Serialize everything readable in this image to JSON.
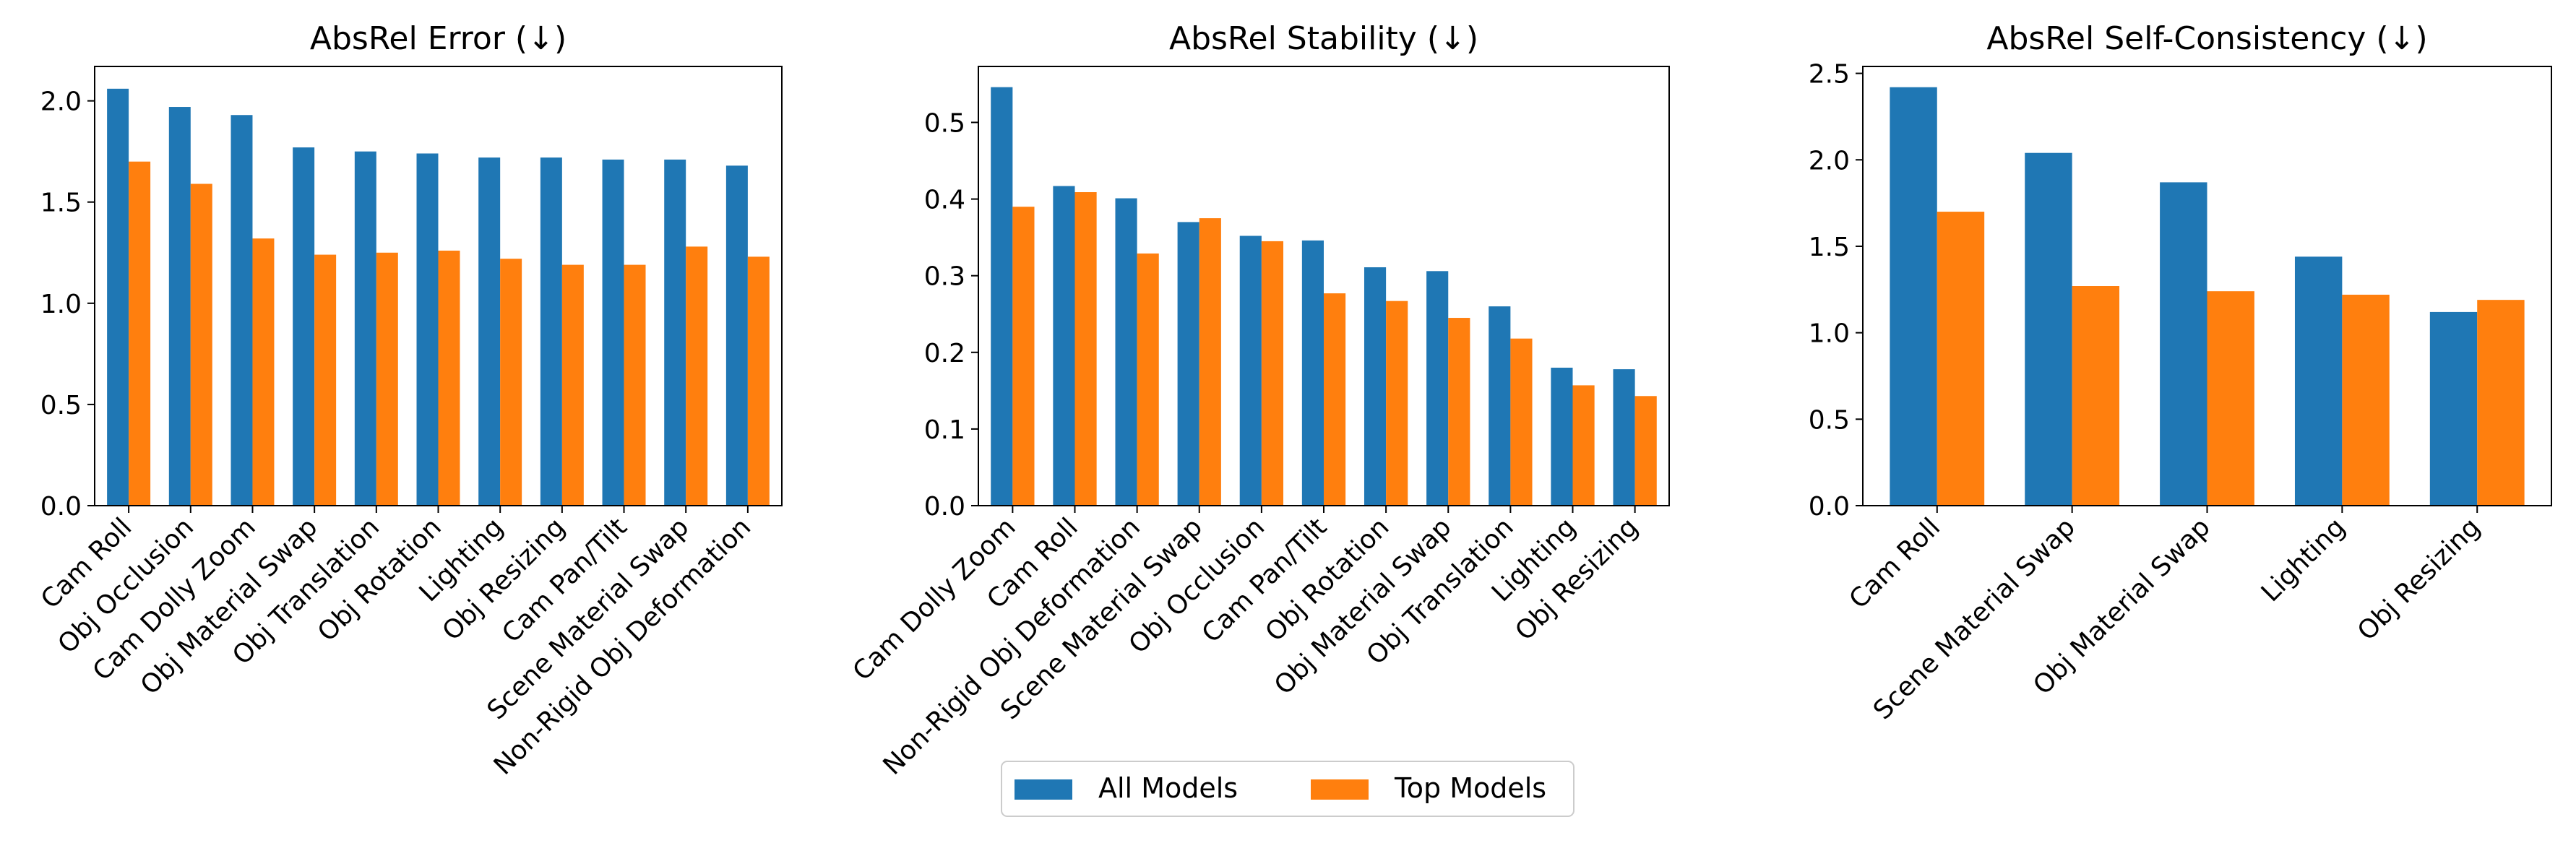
{
  "chart_data": [
    {
      "type": "bar",
      "title": "AbsRel Error (↓)",
      "categories": [
        "Cam Roll",
        "Obj Occlusion",
        "Cam Dolly Zoom",
        "Obj Material Swap",
        "Obj Translation",
        "Obj Rotation",
        "Lighting",
        "Obj Resizing",
        "Cam Pan/Tilt",
        "Scene Material Swap",
        "Non-Rigid Obj Deformation"
      ],
      "series": [
        {
          "name": "All Models",
          "values": [
            2.06,
            1.97,
            1.93,
            1.77,
            1.75,
            1.74,
            1.72,
            1.72,
            1.71,
            1.71,
            1.68
          ]
        },
        {
          "name": "Top Models",
          "values": [
            1.7,
            1.59,
            1.32,
            1.24,
            1.25,
            1.26,
            1.22,
            1.19,
            1.19,
            1.28,
            1.23
          ]
        }
      ],
      "ylim": [
        0,
        2.17
      ],
      "yticks": [
        "0.0",
        "0.5",
        "1.0",
        "1.5",
        "2.0"
      ],
      "xlabel": "",
      "ylabel": ""
    },
    {
      "type": "bar",
      "title": "AbsRel Stability (↓)",
      "categories": [
        "Cam Dolly Zoom",
        "Cam Roll",
        "Non-Rigid Obj Deformation",
        "Scene Material Swap",
        "Obj Occlusion",
        "Cam Pan/Tilt",
        "Obj Rotation",
        "Obj Material Swap",
        "Obj Translation",
        "Lighting",
        "Obj Resizing"
      ],
      "series": [
        {
          "name": "All Models",
          "values": [
            0.546,
            0.417,
            0.401,
            0.37,
            0.352,
            0.346,
            0.311,
            0.306,
            0.26,
            0.18,
            0.178
          ]
        },
        {
          "name": "Top Models",
          "values": [
            0.39,
            0.409,
            0.329,
            0.375,
            0.345,
            0.277,
            0.267,
            0.245,
            0.218,
            0.157,
            0.143
          ]
        }
      ],
      "ylim": [
        0,
        0.573
      ],
      "yticks": [
        "0.0",
        "0.1",
        "0.2",
        "0.3",
        "0.4",
        "0.5"
      ],
      "xlabel": "",
      "ylabel": ""
    },
    {
      "type": "bar",
      "title": "AbsRel Self-Consistency (↓)",
      "categories": [
        "Cam Roll",
        "Scene Material Swap",
        "Obj Material Swap",
        "Lighting",
        "Obj Resizing"
      ],
      "series": [
        {
          "name": "All Models",
          "values": [
            2.42,
            2.04,
            1.87,
            1.44,
            1.12
          ]
        },
        {
          "name": "Top Models",
          "values": [
            1.7,
            1.27,
            1.24,
            1.22,
            1.19
          ]
        }
      ],
      "ylim": [
        0,
        2.54
      ],
      "yticks": [
        "0.0",
        "0.5",
        "1.0",
        "1.5",
        "2.0",
        "2.5"
      ],
      "xlabel": "",
      "ylabel": ""
    }
  ],
  "legend": {
    "placement": "bottom-center",
    "entries": [
      {
        "label": "All Models",
        "color": "#1f77b4"
      },
      {
        "label": "Top Models",
        "color": "#ff7f0e"
      }
    ]
  },
  "colors": {
    "all_models": "#1f77b4",
    "top_models": "#ff7f0e"
  }
}
